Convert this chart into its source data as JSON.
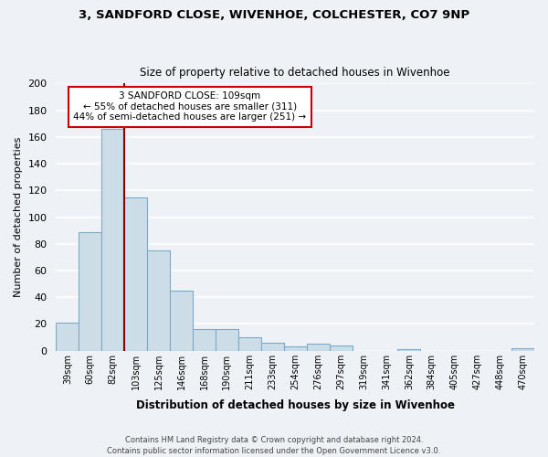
{
  "title_line1": "3, SANDFORD CLOSE, WIVENHOE, COLCHESTER, CO7 9NP",
  "title_line2": "Size of property relative to detached houses in Wivenhoe",
  "xlabel": "Distribution of detached houses by size in Wivenhoe",
  "ylabel": "Number of detached properties",
  "bar_labels": [
    "39sqm",
    "60sqm",
    "82sqm",
    "103sqm",
    "125sqm",
    "146sqm",
    "168sqm",
    "190sqm",
    "211sqm",
    "233sqm",
    "254sqm",
    "276sqm",
    "297sqm",
    "319sqm",
    "341sqm",
    "362sqm",
    "384sqm",
    "405sqm",
    "427sqm",
    "448sqm",
    "470sqm"
  ],
  "bar_values": [
    21,
    89,
    166,
    115,
    75,
    45,
    16,
    16,
    10,
    6,
    3,
    5,
    4,
    0,
    0,
    1,
    0,
    0,
    0,
    0,
    2
  ],
  "bar_color": "#ccdde8",
  "bar_edge_color": "#7aaac8",
  "ylim": [
    0,
    200
  ],
  "yticks": [
    0,
    20,
    40,
    60,
    80,
    100,
    120,
    140,
    160,
    180,
    200
  ],
  "vline_bar_index": 3,
  "annotation_text_line1": "3 SANDFORD CLOSE: 109sqm",
  "annotation_text_line2": "← 55% of detached houses are smaller (311)",
  "annotation_text_line3": "44% of semi-detached houses are larger (251) →",
  "annotation_box_color": "#ffffff",
  "annotation_box_edge": "#cc0000",
  "vline_color": "#8b0000",
  "footer_line1": "Contains HM Land Registry data © Crown copyright and database right 2024.",
  "footer_line2": "Contains public sector information licensed under the Open Government Licence v3.0.",
  "background_color": "#eef2f7",
  "grid_color": "#ffffff"
}
